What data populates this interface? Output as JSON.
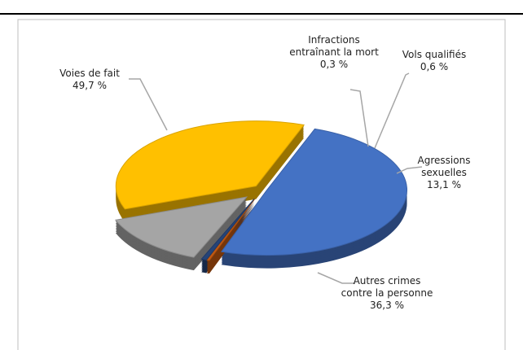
{
  "chart_data": {
    "type": "pie",
    "categories": [
      "Voies de fait",
      "Infractions entraînant la mort",
      "Vols qualifiés",
      "Agressions sexuelles",
      "Autres crimes contre la personne"
    ],
    "values": [
      49.7,
      0.3,
      0.6,
      13.1,
      36.3
    ],
    "value_labels": [
      "49,7 %",
      "0,3 %",
      "0,6 %",
      "13,1 %",
      "36,3 %"
    ],
    "colors": [
      "#4472c4",
      "#c55a11",
      "#264478",
      "#a5a5a5",
      "#ffc000"
    ]
  }
}
